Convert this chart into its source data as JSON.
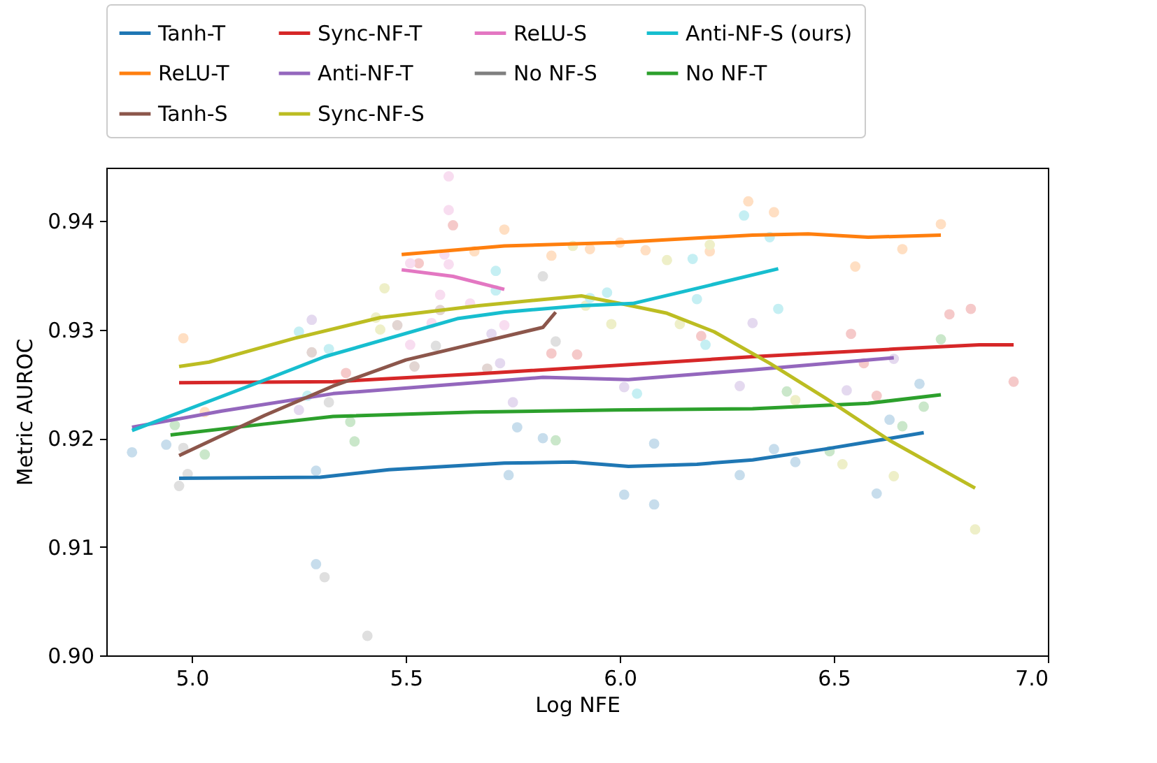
{
  "chart_data": {
    "type": "line",
    "xlabel": "Log NFE",
    "ylabel": "Metric AUROC",
    "xlim": [
      4.8,
      7.0
    ],
    "ylim": [
      0.9,
      0.9449
    ],
    "xticks": [
      {
        "value": 5,
        "label": "5.0"
      },
      {
        "value": 5.5,
        "label": "5.5"
      },
      {
        "value": 6,
        "label": "6.0"
      },
      {
        "value": 6.5,
        "label": "6.5"
      },
      {
        "value": 7,
        "label": "7.0"
      }
    ],
    "yticks": [
      {
        "value": 0.9,
        "label": "0.90"
      },
      {
        "value": 0.91,
        "label": "0.91"
      },
      {
        "value": 0.92,
        "label": "0.92"
      },
      {
        "value": 0.93,
        "label": "0.93"
      },
      {
        "value": 0.94,
        "label": "0.94"
      }
    ],
    "grid": false,
    "legend": "top",
    "series": [
      {
        "name": "Tanh-T",
        "color": "#1f77b4",
        "x": [
          4.97,
          5.3,
          5.46,
          5.73,
          5.89,
          6.02,
          6.18,
          6.31,
          6.48,
          6.71
        ],
        "values": [
          0.9163,
          0.9164,
          0.9171,
          0.9177,
          0.9178,
          0.9174,
          0.9176,
          0.918,
          0.919,
          0.9205
        ]
      },
      {
        "name": "ReLU-T",
        "color": "#ff7f0e",
        "x": [
          5.49,
          5.73,
          5.99,
          6.31,
          6.44,
          6.58,
          6.75
        ],
        "values": [
          0.9369,
          0.9377,
          0.938,
          0.9387,
          0.9388,
          0.9385,
          0.9387
        ]
      },
      {
        "name": "No NF-T",
        "color": "#2ca02c",
        "x": [
          4.95,
          5.17,
          5.33,
          5.66,
          5.99,
          6.31,
          6.58,
          6.75
        ],
        "values": [
          0.9203,
          0.9213,
          0.922,
          0.9224,
          0.9226,
          0.9227,
          0.9232,
          0.924
        ]
      },
      {
        "name": "Sync-NF-T",
        "color": "#d62728",
        "x": [
          4.97,
          5.33,
          5.66,
          5.99,
          6.31,
          6.64,
          6.84,
          6.92
        ],
        "values": [
          0.9251,
          0.9252,
          0.9259,
          0.9267,
          0.9275,
          0.9282,
          0.9286,
          0.9286
        ]
      },
      {
        "name": "Anti-NF-T",
        "color": "#9467bd",
        "x": [
          4.86,
          5.07,
          5.33,
          5.66,
          5.82,
          6.02,
          6.31,
          6.64
        ],
        "values": [
          0.921,
          0.9225,
          0.9241,
          0.9251,
          0.9256,
          0.9254,
          0.9263,
          0.9274
        ]
      },
      {
        "name": "Tanh-S",
        "color": "#8c564b",
        "x": [
          4.97,
          5.17,
          5.33,
          5.5,
          5.66,
          5.82,
          5.85
        ],
        "values": [
          0.9184,
          0.9221,
          0.9248,
          0.9272,
          0.9287,
          0.9302,
          0.9316
        ]
      },
      {
        "name": "ReLU-S",
        "color": "#e377c2",
        "x": [
          5.49,
          5.61,
          5.73
        ],
        "values": [
          0.9355,
          0.9349,
          0.9337
        ]
      },
      {
        "name": "No NF-S",
        "color": "#7f7f7f"
      },
      {
        "name": "Sync-NF-S",
        "color": "#bcbd22",
        "x": [
          4.97,
          5.04,
          5.24,
          5.44,
          5.67,
          5.91,
          6.0,
          6.11,
          6.22,
          6.35,
          6.48,
          6.63,
          6.83
        ],
        "values": [
          0.9266,
          0.927,
          0.9292,
          0.9311,
          0.9322,
          0.9331,
          0.9324,
          0.9315,
          0.9298,
          0.9269,
          0.9237,
          0.9198,
          0.9154
        ]
      },
      {
        "name": "Anti-NF-S (ours)",
        "color": "#17becf",
        "x": [
          4.86,
          5.16,
          5.31,
          5.62,
          5.73,
          5.91,
          6.03,
          6.16,
          6.37
        ],
        "values": [
          0.9207,
          0.9252,
          0.9275,
          0.931,
          0.9316,
          0.9322,
          0.9324,
          0.9336,
          0.9356
        ]
      },
      {
        "type": "scatter",
        "color": "#c7ddec",
        "x": [
          4.86,
          4.94,
          5.29,
          5.29,
          5.74,
          6.08,
          6.01,
          6.08,
          6.28,
          6.36,
          6.41,
          6.6,
          6.63,
          6.7,
          5.76,
          5.82
        ],
        "values": [
          0.9187,
          0.9194,
          0.917,
          0.9084,
          0.9166,
          0.9195,
          0.9148,
          0.9139,
          0.9166,
          0.919,
          0.9178,
          0.9149,
          0.9217,
          0.925,
          0.921,
          0.92
        ]
      },
      {
        "type": "scatter",
        "color": "#ffdfc3",
        "x": [
          4.98,
          5.73,
          5.84,
          5.66,
          6.3,
          6.36,
          5.93,
          6.0,
          6.06,
          6.21,
          6.55,
          6.66,
          6.75,
          5.03
        ],
        "values": [
          0.9292,
          0.9392,
          0.9368,
          0.9372,
          0.9418,
          0.9408,
          0.9374,
          0.938,
          0.9373,
          0.9372,
          0.9358,
          0.9374,
          0.9397,
          0.9224
        ]
      },
      {
        "type": "scatter",
        "color": "#cae7ca",
        "x": [
          4.96,
          5.03,
          5.37,
          5.38,
          5.85,
          6.39,
          6.75,
          6.71,
          6.66,
          6.49
        ],
        "values": [
          0.9212,
          0.9185,
          0.9215,
          0.9197,
          0.9198,
          0.9243,
          0.9291,
          0.9229,
          0.9211,
          0.9188
        ]
      },
      {
        "type": "scatter",
        "color": "#f5c9c9",
        "x": [
          5.61,
          5.53,
          5.84,
          5.9,
          5.36,
          6.19,
          6.57,
          6.77,
          6.82,
          6.92,
          6.6,
          6.54
        ],
        "values": [
          0.9396,
          0.9361,
          0.9278,
          0.9277,
          0.926,
          0.9294,
          0.9269,
          0.9314,
          0.9319,
          0.9252,
          0.9239,
          0.9296
        ]
      },
      {
        "type": "scatter",
        "color": "#e4d9ef",
        "x": [
          5.28,
          5.72,
          5.7,
          5.75,
          5.25,
          6.31,
          6.01,
          6.28,
          6.53,
          6.64
        ],
        "values": [
          0.9309,
          0.9269,
          0.9296,
          0.9233,
          0.9226,
          0.9306,
          0.9247,
          0.9248,
          0.9244,
          0.9273
        ]
      },
      {
        "type": "scatter",
        "color": "#e2d5d2",
        "x": [
          5.28,
          5.48,
          5.52,
          5.58,
          5.69
        ],
        "values": [
          0.9279,
          0.9304,
          0.9266,
          0.9318,
          0.9264
        ]
      },
      {
        "type": "scatter",
        "color": "#f8ddf0",
        "x": [
          5.6,
          5.6,
          5.51,
          5.6,
          5.58,
          5.65,
          5.56,
          5.51,
          5.73,
          5.59
        ],
        "values": [
          0.9441,
          0.941,
          0.9361,
          0.936,
          0.9332,
          0.9324,
          0.9306,
          0.9286,
          0.9304,
          0.9369
        ]
      },
      {
        "type": "scatter",
        "color": "#dfdfdf",
        "x": [
          4.97,
          4.99,
          4.98,
          5.31,
          5.41,
          5.32,
          5.82,
          5.85,
          5.57
        ],
        "values": [
          0.9156,
          0.9167,
          0.9191,
          0.9072,
          0.9018,
          0.9233,
          0.9349,
          0.9289,
          0.9285
        ]
      },
      {
        "type": "scatter",
        "color": "#eeefc8",
        "x": [
          5.45,
          5.44,
          5.43,
          5.89,
          6.11,
          6.21,
          5.98,
          6.14,
          5.92,
          6.41,
          6.52,
          6.64,
          6.83
        ],
        "values": [
          0.9338,
          0.93,
          0.9311,
          0.9377,
          0.9364,
          0.9378,
          0.9305,
          0.9305,
          0.9322,
          0.9235,
          0.9176,
          0.9165,
          0.9116
        ]
      },
      {
        "type": "scatter",
        "color": "#c5eff3",
        "x": [
          5.25,
          5.32,
          5.27,
          5.71,
          5.71,
          6.29,
          6.35,
          6.17,
          5.97,
          6.18,
          6.37,
          6.2,
          6.04,
          5.93
        ],
        "values": [
          0.9298,
          0.9282,
          0.9239,
          0.9354,
          0.9336,
          0.9405,
          0.9385,
          0.9365,
          0.9334,
          0.9328,
          0.9319,
          0.9286,
          0.9241,
          0.9329
        ]
      }
    ]
  }
}
